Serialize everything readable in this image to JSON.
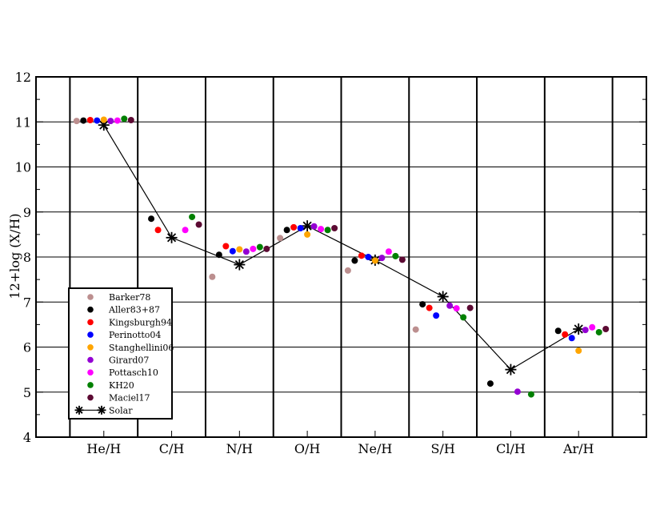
{
  "chart_data": {
    "type": "scatter",
    "title": "",
    "xlabel": "",
    "ylabel": "12+log (X/H)",
    "ylim": [
      4,
      12
    ],
    "yticks": [
      4,
      5,
      6,
      7,
      8,
      9,
      10,
      11,
      12
    ],
    "categories": [
      "He/H",
      "C/H",
      "N/H",
      "O/H",
      "Ne/H",
      "S/H",
      "Cl/H",
      "Ar/H"
    ],
    "grid": true,
    "legend_position": "bottom-left",
    "series": [
      {
        "name": "Barker78",
        "color": "#bc8f8f",
        "marker": "dot",
        "values": [
          11.02,
          null,
          7.56,
          8.42,
          7.7,
          6.39,
          null,
          null
        ]
      },
      {
        "name": "Aller83+87",
        "color": "#000000",
        "marker": "dot",
        "values": [
          11.03,
          8.85,
          8.05,
          8.6,
          7.92,
          6.95,
          5.19,
          6.36
        ]
      },
      {
        "name": "Kingsburgh94",
        "color": "#ff0000",
        "marker": "dot",
        "values": [
          11.04,
          8.6,
          8.24,
          8.66,
          8.03,
          6.87,
          null,
          6.28
        ]
      },
      {
        "name": "Perinotto04",
        "color": "#0000ff",
        "marker": "dot",
        "values": [
          11.03,
          null,
          8.13,
          8.64,
          8.0,
          6.7,
          null,
          6.2
        ]
      },
      {
        "name": "Stanghellini06",
        "color": "#ffa500",
        "marker": "dot",
        "values": [
          11.05,
          null,
          8.17,
          8.5,
          7.92,
          null,
          null,
          5.92
        ]
      },
      {
        "name": "Girard07",
        "color": "#9400d3",
        "marker": "dot",
        "values": [
          11.02,
          null,
          8.12,
          8.68,
          7.98,
          6.92,
          5.01,
          6.38
        ]
      },
      {
        "name": "Pottasch10",
        "color": "#ff00ff",
        "marker": "dot",
        "values": [
          11.03,
          8.6,
          8.18,
          8.62,
          8.12,
          6.86,
          null,
          6.44
        ]
      },
      {
        "name": "KH20",
        "color": "#008000",
        "marker": "dot",
        "values": [
          11.07,
          8.89,
          8.22,
          8.6,
          8.02,
          6.66,
          4.95,
          6.33
        ]
      },
      {
        "name": "Maciel17",
        "color": "#5c0a33",
        "marker": "dot",
        "values": [
          11.04,
          8.72,
          8.18,
          8.64,
          7.94,
          6.87,
          null,
          6.4
        ]
      },
      {
        "name": "Solar",
        "color": "#000000",
        "marker": "star-line",
        "values": [
          10.93,
          8.43,
          7.83,
          8.69,
          7.93,
          7.12,
          5.5,
          6.4
        ]
      }
    ]
  }
}
